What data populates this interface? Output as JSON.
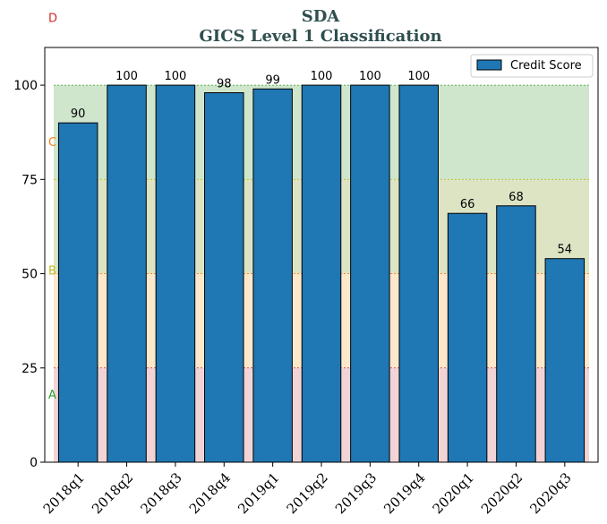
{
  "chart_data": {
    "type": "bar",
    "title": "SDA",
    "subtitle": "GICS Level 1 Classification",
    "title_color": "#2f4f4f",
    "xlabel": "",
    "ylabel": "",
    "ylim": [
      0,
      110
    ],
    "yticks": [
      0,
      25,
      50,
      75,
      100
    ],
    "categories": [
      "2018q1",
      "2018q2",
      "2018q3",
      "2018q4",
      "2019q1",
      "2019q2",
      "2019q3",
      "2019q4",
      "2020q1",
      "2020q2",
      "2020q3"
    ],
    "series": [
      {
        "name": "Credit Score",
        "color": "#1f77b4",
        "values": [
          90,
          100,
          100,
          98,
          99,
          100,
          100,
          100,
          66,
          68,
          54
        ]
      }
    ],
    "legend": {
      "position": "top-right"
    },
    "grid": false,
    "bands": [
      {
        "label": "A",
        "from": 0,
        "to": 25,
        "color": "#f2d4d6",
        "line_color": "#d62728",
        "label_color": "#2ca02c",
        "label_y": 18
      },
      {
        "label": "B",
        "from": 25,
        "to": 50,
        "color": "#fde8cc",
        "line_color": "#ff7f0e",
        "label_color": "#bcbd22",
        "label_y": 51
      },
      {
        "label": "C",
        "from": 50,
        "to": 75,
        "color": "#dde4c4",
        "line_color": "#bcbd22",
        "label_color": "#ff7f0e",
        "label_y": 85
      },
      {
        "label": "D",
        "from": 75,
        "to": 100,
        "color": "#cfe6cc",
        "line_color": "#2ca02c",
        "label_color": "#d62728",
        "label_y": 118
      }
    ]
  }
}
